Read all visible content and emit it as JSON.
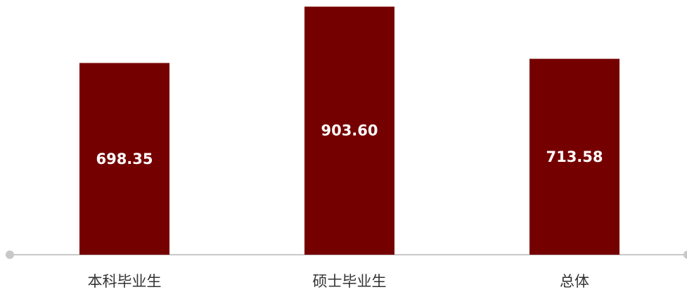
{
  "chart_data": {
    "type": "bar",
    "categories": [
      "本科毕业生",
      "硕士毕业生",
      "总体"
    ],
    "values": [
      698.35,
      903.6,
      713.58
    ],
    "value_labels": [
      "698.35",
      "903.60",
      "713.58"
    ],
    "ylim": [
      0,
      915
    ],
    "grid": false,
    "legend": "none",
    "bar_color": "#750000",
    "axis_color": "#c8c8c8",
    "label_color": "#ffffff"
  }
}
